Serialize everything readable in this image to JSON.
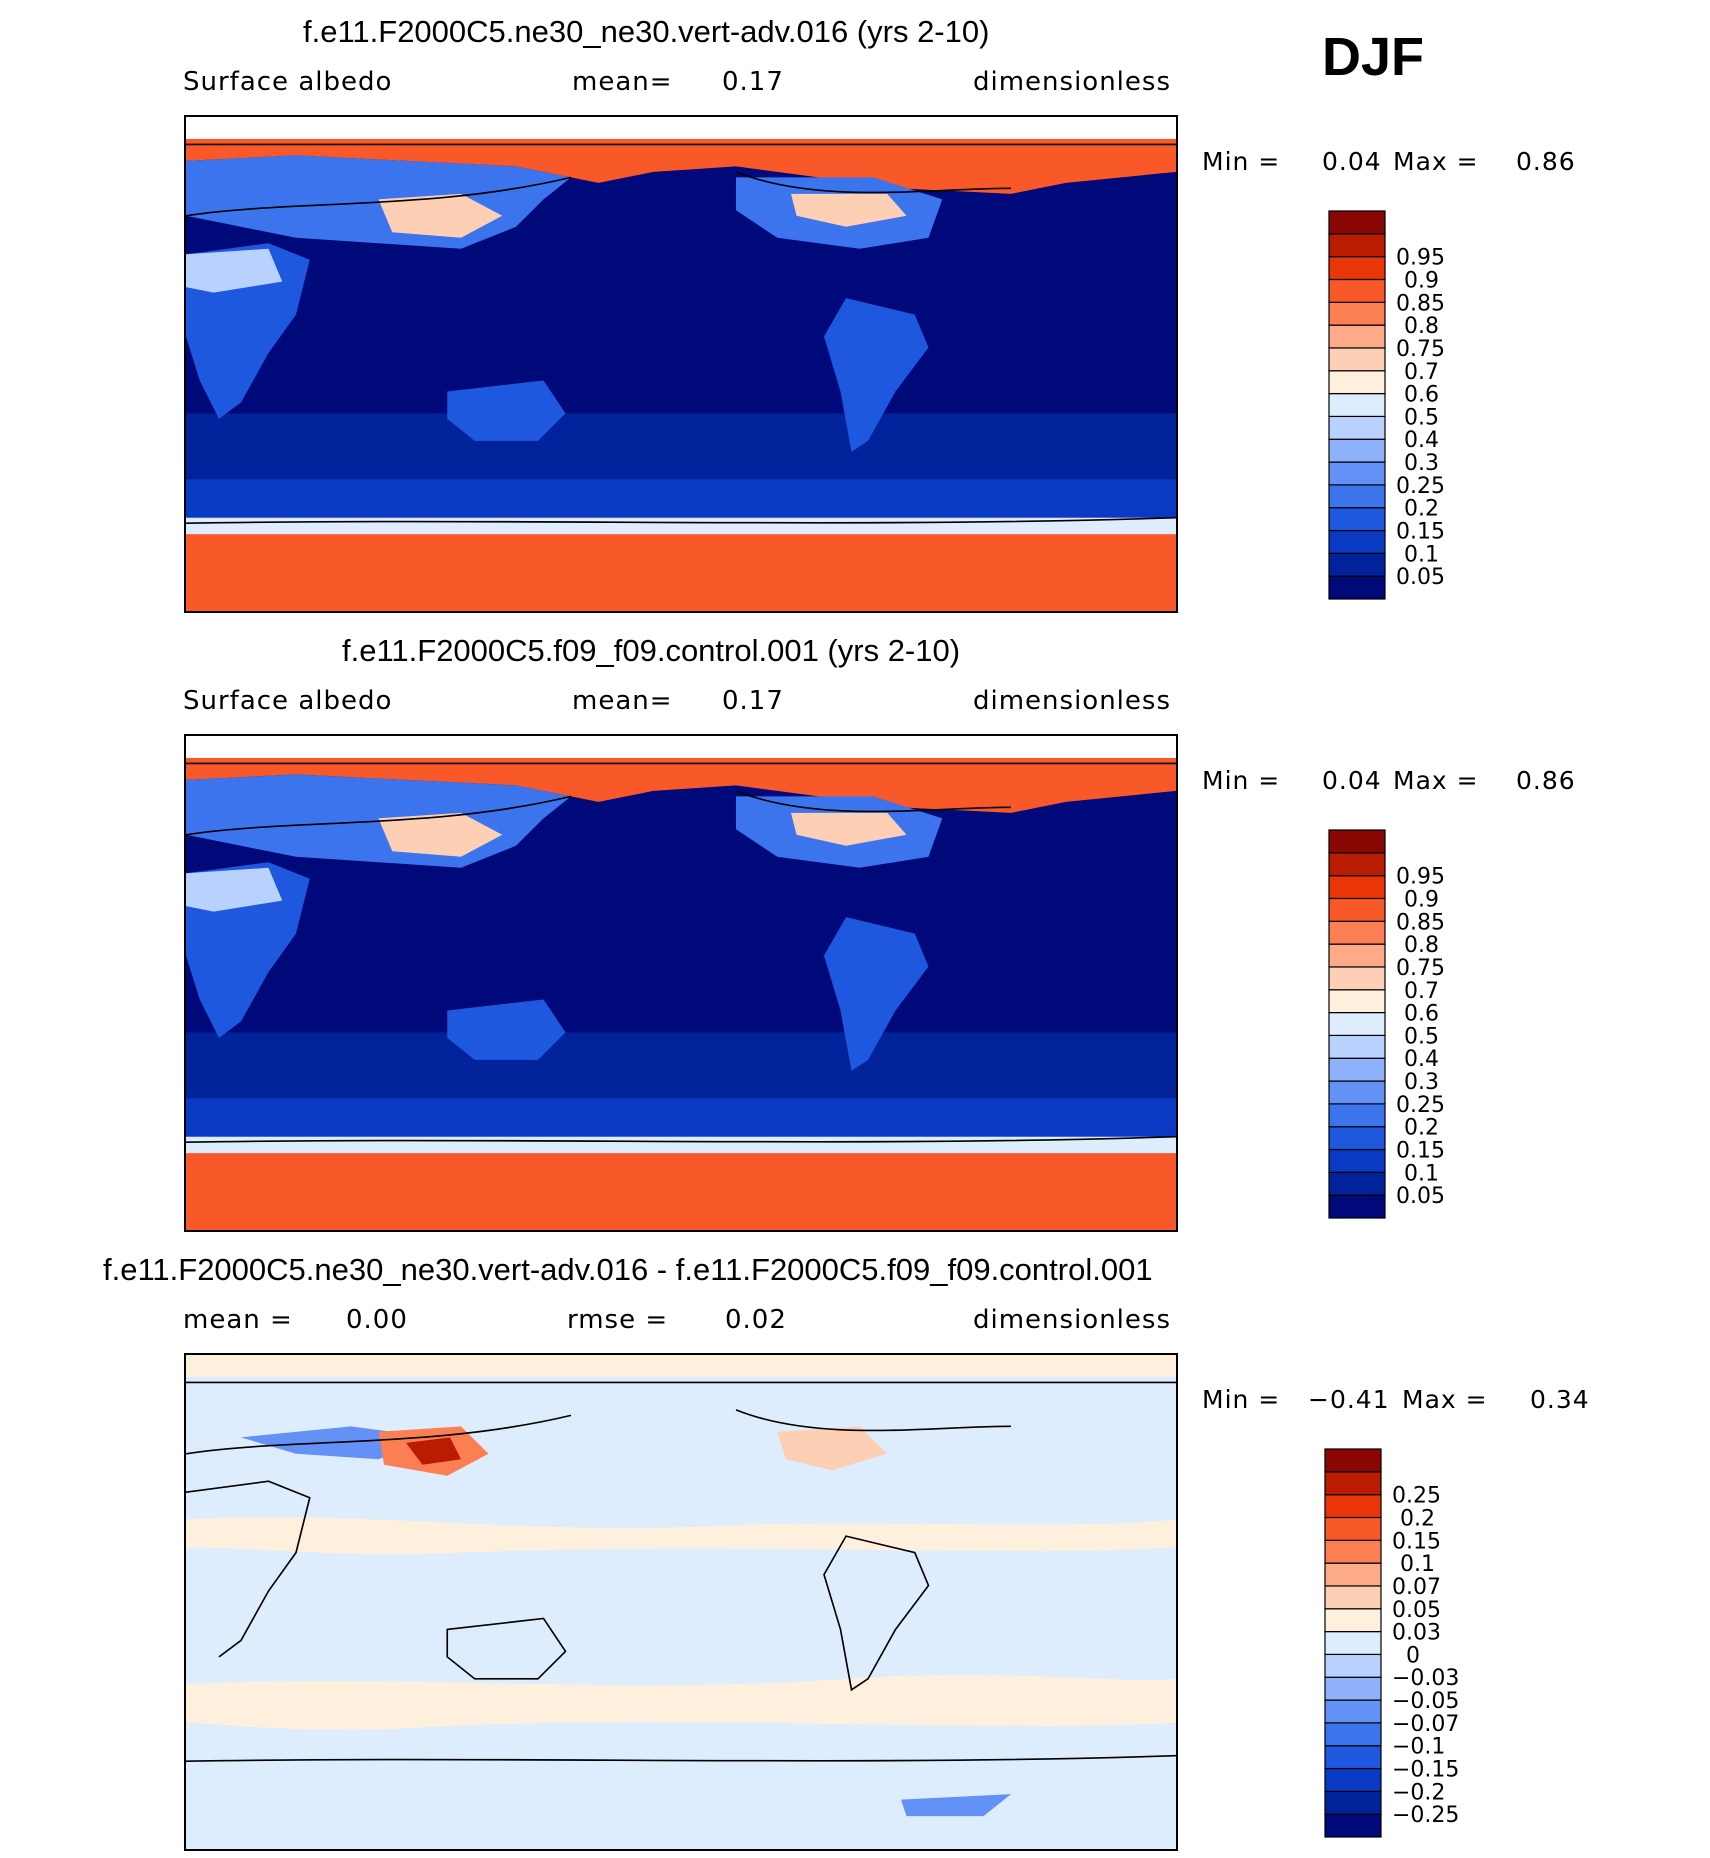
{
  "season": "DJF",
  "panels": [
    {
      "title": "f.e11.F2000C5.ne30_ne30.vert-adv.016 (yrs 2-10)",
      "variable": "Surface albedo",
      "stat_label": "mean=",
      "stat_value": "0.17",
      "units": "dimensionless",
      "min_label": "Min =",
      "min_value": "0.04",
      "max_label": "Max =",
      "max_value": "0.86"
    },
    {
      "title": "f.e11.F2000C5.f09_f09.control.001 (yrs 2-10)",
      "variable": "Surface albedo",
      "stat_label": "mean=",
      "stat_value": "0.17",
      "units": "dimensionless",
      "min_label": "Min =",
      "min_value": "0.04",
      "max_label": "Max =",
      "max_value": "0.86"
    },
    {
      "title": "f.e11.F2000C5.ne30_ne30.vert-adv.016 - f.e11.F2000C5.f09_f09.control.001",
      "mean_label": "mean =",
      "mean_value": "0.00",
      "rmse_label": "rmse =",
      "rmse_value": "0.02",
      "units": "dimensionless",
      "min_label": "Min =",
      "min_value": "−0.41",
      "max_label": "Max =",
      "max_value": "0.34"
    }
  ],
  "chart_data": [
    {
      "type": "heatmap",
      "title": "f.e11.F2000C5.ne30_ne30.vert-adv.016 (yrs 2-10)",
      "variable": "Surface albedo",
      "units": "dimensionless",
      "mean": 0.17,
      "min": 0.04,
      "max": 0.86,
      "projection": "cylindrical equidistant, centered on 180",
      "colorbar": {
        "levels": [
          "0.05",
          "0.1",
          "0.15",
          "0.2",
          "0.25",
          "0.3",
          "0.4",
          "0.5",
          "0.6",
          "0.7",
          "0.75",
          "0.8",
          "0.85",
          "0.9",
          "0.95"
        ],
        "colors": [
          "#00097a",
          "#00239b",
          "#0a39c4",
          "#1e58de",
          "#3c74ee",
          "#6391f6",
          "#8fb0fb",
          "#b9d2fd",
          "#deedfe",
          "#fff0dd",
          "#fdd0b6",
          "#fcaa88",
          "#fb7f52",
          "#f95828",
          "#e93508",
          "#ba1c02",
          "#8a0703"
        ]
      }
    },
    {
      "type": "heatmap",
      "title": "f.e11.F2000C5.f09_f09.control.001 (yrs 2-10)",
      "variable": "Surface albedo",
      "units": "dimensionless",
      "mean": 0.17,
      "min": 0.04,
      "max": 0.86,
      "projection": "cylindrical equidistant, centered on 180",
      "colorbar": {
        "levels": [
          "0.05",
          "0.1",
          "0.15",
          "0.2",
          "0.25",
          "0.3",
          "0.4",
          "0.5",
          "0.6",
          "0.7",
          "0.75",
          "0.8",
          "0.85",
          "0.9",
          "0.95"
        ],
        "colors": [
          "#00097a",
          "#00239b",
          "#0a39c4",
          "#1e58de",
          "#3c74ee",
          "#6391f6",
          "#8fb0fb",
          "#b9d2fd",
          "#deedfe",
          "#fff0dd",
          "#fdd0b6",
          "#fcaa88",
          "#fb7f52",
          "#f95828",
          "#e93508",
          "#ba1c02",
          "#8a0703"
        ]
      }
    },
    {
      "type": "heatmap",
      "title": "f.e11.F2000C5.ne30_ne30.vert-adv.016 - f.e11.F2000C5.f09_f09.control.001",
      "units": "dimensionless",
      "mean": 0.0,
      "rmse": 0.02,
      "min": -0.41,
      "max": 0.34,
      "projection": "cylindrical equidistant, centered on 180",
      "colorbar": {
        "levels": [
          "−0.25",
          "−0.2",
          "−0.15",
          "−0.1",
          "−0.07",
          "−0.05",
          "−0.03",
          "0",
          "0.03",
          "0.05",
          "0.07",
          "0.1",
          "0.15",
          "0.2",
          "0.25"
        ],
        "colors": [
          "#00097a",
          "#00239b",
          "#0a39c4",
          "#1e58de",
          "#3c74ee",
          "#6391f6",
          "#8fb0fb",
          "#b9d2fd",
          "#deedfe",
          "#fff0dd",
          "#fdd0b6",
          "#fcaa88",
          "#fb7f52",
          "#f95828",
          "#e93508",
          "#ba1c02",
          "#8a0703"
        ]
      }
    }
  ]
}
